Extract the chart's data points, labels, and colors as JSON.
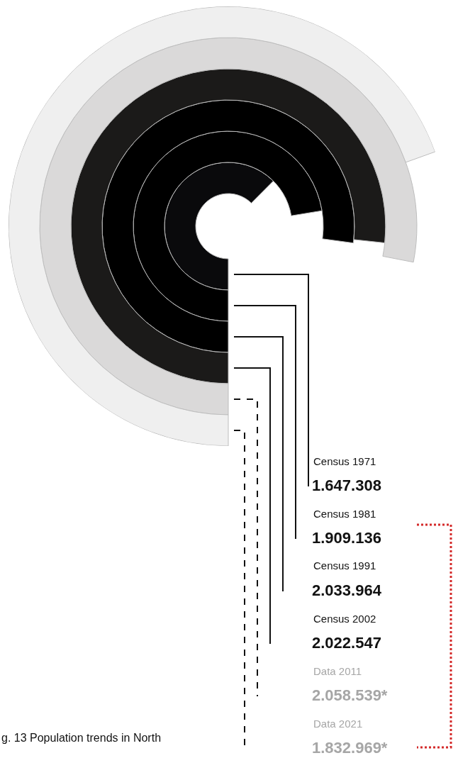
{
  "chart_data": {
    "type": "other",
    "categories": [
      "Census 1971",
      "Census 1981",
      "Census 1991",
      "Census 2002",
      "Data 2011",
      "Data 2021"
    ],
    "values": [
      1647308,
      1909136,
      2033964,
      2022547,
      2058539,
      1832969
    ],
    "colors": [
      "#0a0a0c",
      "#000000",
      "#000000",
      "#1b1a19",
      "#dad9d9",
      "#efefef"
    ],
    "value_labels": [
      "1.647.308",
      "1.909.136",
      "2.033.964",
      "2.022.547",
      "2.058.539*",
      "1.832.969*"
    ],
    "annotations": [
      "g. 13 Population trends in North"
    ]
  }
}
